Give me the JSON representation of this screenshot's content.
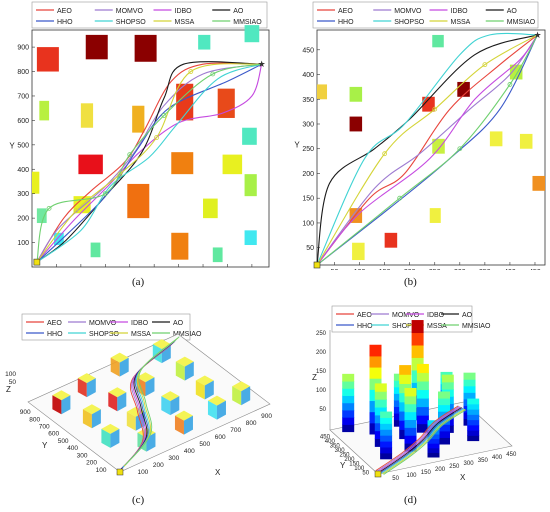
{
  "captions": {
    "a": "(a)",
    "b": "(b)",
    "c": "(c)",
    "d": "(d)"
  },
  "legend": [
    "AEO",
    "MOMVO",
    "IDBO",
    "AO",
    "HHO",
    "SHOPSO",
    "MSSA",
    "MMSIAO"
  ],
  "series_colors": {
    "AEO": "#e8453c",
    "MOMVO": "#9e7bd1",
    "IDBO": "#c54ae0",
    "AO": "#1a1a1a",
    "HHO": "#3b59c9",
    "SHOPSO": "#40d3d3",
    "MSSA": "#d4d437",
    "MMSIAO": "#6fd06f"
  },
  "chart_data": [
    {
      "panel": "a",
      "type": "line",
      "xlabel": "X",
      "ylabel": "Y",
      "xlim": [
        0,
        970
      ],
      "ylim": [
        0,
        970
      ],
      "xticks": [
        100,
        200,
        300,
        400,
        500,
        600,
        700,
        800,
        900
      ],
      "yticks": [
        100,
        200,
        300,
        400,
        500,
        600,
        700,
        800,
        900
      ],
      "start": [
        20,
        20
      ],
      "goal": [
        940,
        830
      ],
      "obstacles": [
        {
          "x": [
            20,
            110
          ],
          "y": [
            800,
            900
          ],
          "c": "#e8331e"
        },
        {
          "x": [
            220,
            310
          ],
          "y": [
            850,
            950
          ],
          "c": "#8b0000"
        },
        {
          "x": [
            420,
            510
          ],
          "y": [
            840,
            950
          ],
          "c": "#8b0000"
        },
        {
          "x": [
            870,
            930
          ],
          "y": [
            920,
            990
          ],
          "c": "#50e8c0"
        },
        {
          "x": [
            680,
            730
          ],
          "y": [
            890,
            950
          ],
          "c": "#50e8c0"
        },
        {
          "x": [
            30,
            70
          ],
          "y": [
            600,
            680
          ],
          "c": "#b8f040"
        },
        {
          "x": [
            200,
            250
          ],
          "y": [
            570,
            670
          ],
          "c": "#f0e040"
        },
        {
          "x": [
            410,
            460
          ],
          "y": [
            550,
            660
          ],
          "c": "#f0b020"
        },
        {
          "x": [
            590,
            660
          ],
          "y": [
            600,
            750
          ],
          "c": "#e83a1a"
        },
        {
          "x": [
            760,
            830
          ],
          "y": [
            610,
            730
          ],
          "c": "#e84a1a"
        },
        {
          "x": [
            860,
            920
          ],
          "y": [
            500,
            570
          ],
          "c": "#50e8c0"
        },
        {
          "x": [
            190,
            290
          ],
          "y": [
            380,
            460
          ],
          "c": "#e8101a"
        },
        {
          "x": [
            570,
            660
          ],
          "y": [
            380,
            470
          ],
          "c": "#f08010"
        },
        {
          "x": [
            780,
            860
          ],
          "y": [
            380,
            460
          ],
          "c": "#e8f020"
        },
        {
          "x": [
            0,
            30
          ],
          "y": [
            300,
            390
          ],
          "c": "#e8f020"
        },
        {
          "x": [
            390,
            480
          ],
          "y": [
            200,
            340
          ],
          "c": "#f07010"
        },
        {
          "x": [
            170,
            240
          ],
          "y": [
            220,
            290
          ],
          "c": "#e8f020"
        },
        {
          "x": [
            700,
            760
          ],
          "y": [
            200,
            280
          ],
          "c": "#e0f020"
        },
        {
          "x": [
            870,
            920
          ],
          "y": [
            290,
            380
          ],
          "c": "#a8f048"
        },
        {
          "x": [
            20,
            60
          ],
          "y": [
            180,
            240
          ],
          "c": "#70e8a0"
        },
        {
          "x": [
            90,
            130
          ],
          "y": [
            90,
            140
          ],
          "c": "#40e8f0"
        },
        {
          "x": [
            240,
            280
          ],
          "y": [
            40,
            100
          ],
          "c": "#60e8a0"
        },
        {
          "x": [
            570,
            640
          ],
          "y": [
            30,
            140
          ],
          "c": "#f08010"
        },
        {
          "x": [
            740,
            780
          ],
          "y": [
            20,
            80
          ],
          "c": "#60e8a0"
        },
        {
          "x": [
            870,
            920
          ],
          "y": [
            90,
            150
          ],
          "c": "#40e8f0"
        }
      ],
      "series": [
        {
          "name": "AEO",
          "points": [
            [
              20,
              20
            ],
            [
              130,
              200
            ],
            [
              240,
              310
            ],
            [
              380,
              430
            ],
            [
              460,
              560
            ],
            [
              570,
              760
            ],
            [
              700,
              830
            ],
            [
              940,
              830
            ]
          ]
        },
        {
          "name": "MOMVO",
          "points": [
            [
              20,
              20
            ],
            [
              110,
              160
            ],
            [
              300,
              330
            ],
            [
              420,
              470
            ],
            [
              540,
              660
            ],
            [
              700,
              790
            ],
            [
              940,
              830
            ]
          ]
        },
        {
          "name": "IDBO",
          "points": [
            [
              20,
              20
            ],
            [
              170,
              190
            ],
            [
              320,
              340
            ],
            [
              440,
              470
            ],
            [
              600,
              590
            ],
            [
              780,
              630
            ],
            [
              900,
              700
            ],
            [
              940,
              830
            ]
          ]
        },
        {
          "name": "AO",
          "points": [
            [
              20,
              20
            ],
            [
              140,
              110
            ],
            [
              300,
              290
            ],
            [
              450,
              470
            ],
            [
              540,
              690
            ],
            [
              620,
              830
            ],
            [
              940,
              830
            ]
          ]
        },
        {
          "name": "HHO",
          "points": [
            [
              20,
              20
            ],
            [
              150,
              140
            ],
            [
              310,
              300
            ],
            [
              430,
              480
            ],
            [
              560,
              650
            ],
            [
              800,
              760
            ],
            [
              940,
              830
            ]
          ]
        },
        {
          "name": "SHOPSO",
          "points": [
            [
              20,
              20
            ],
            [
              200,
              150
            ],
            [
              320,
              330
            ],
            [
              480,
              450
            ],
            [
              590,
              580
            ],
            [
              760,
              770
            ],
            [
              940,
              830
            ]
          ]
        },
        {
          "name": "MSSA",
          "points": [
            [
              20,
              20
            ],
            [
              180,
              230
            ],
            [
              360,
              380
            ],
            [
              510,
              530
            ],
            [
              650,
              800
            ],
            [
              940,
              830
            ]
          ]
        },
        {
          "name": "MMSIAO",
          "points": [
            [
              20,
              20
            ],
            [
              70,
              240
            ],
            [
              300,
              300
            ],
            [
              400,
              460
            ],
            [
              540,
              620
            ],
            [
              740,
              790
            ],
            [
              940,
              830
            ]
          ]
        }
      ]
    },
    {
      "panel": "b",
      "type": "line",
      "xlabel": "X",
      "ylabel": "Y",
      "xlim": [
        15,
        470
      ],
      "ylim": [
        15,
        490
      ],
      "xticks": [
        50,
        100,
        150,
        200,
        250,
        300,
        350,
        400,
        450
      ],
      "yticks": [
        50,
        100,
        150,
        200,
        250,
        300,
        350,
        400,
        450
      ],
      "start": [
        15,
        15
      ],
      "goal": [
        455,
        480
      ],
      "obstacles": [
        {
          "x": [
            15,
            35
          ],
          "y": [
            350,
            380
          ],
          "c": "#f0d040"
        },
        {
          "x": [
            80,
            105
          ],
          "y": [
            345,
            375
          ],
          "c": "#a8f048"
        },
        {
          "x": [
            80,
            105
          ],
          "y": [
            285,
            315
          ],
          "c": "#8b0000"
        },
        {
          "x": [
            245,
            268
          ],
          "y": [
            455,
            480
          ],
          "c": "#60e8a0"
        },
        {
          "x": [
            225,
            250
          ],
          "y": [
            325,
            355
          ],
          "c": "#e8331e"
        },
        {
          "x": [
            295,
            320
          ],
          "y": [
            355,
            385
          ],
          "c": "#8b0000"
        },
        {
          "x": [
            400,
            425
          ],
          "y": [
            390,
            420
          ],
          "c": "#b8f040"
        },
        {
          "x": [
            245,
            270
          ],
          "y": [
            240,
            270
          ],
          "c": "#c8f040"
        },
        {
          "x": [
            360,
            385
          ],
          "y": [
            255,
            285
          ],
          "c": "#f0f040"
        },
        {
          "x": [
            420,
            445
          ],
          "y": [
            250,
            280
          ],
          "c": "#f0f040"
        },
        {
          "x": [
            445,
            470
          ],
          "y": [
            165,
            195
          ],
          "c": "#f09020"
        },
        {
          "x": [
            80,
            105
          ],
          "y": [
            100,
            130
          ],
          "c": "#f09020"
        },
        {
          "x": [
            240,
            262
          ],
          "y": [
            100,
            130
          ],
          "c": "#f0f040"
        },
        {
          "x": [
            150,
            175
          ],
          "y": [
            50,
            80
          ],
          "c": "#e8331e"
        },
        {
          "x": [
            85,
            110
          ],
          "y": [
            25,
            60
          ],
          "c": "#f0f040"
        }
      ],
      "series": [
        {
          "name": "AEO",
          "points": [
            [
              15,
              15
            ],
            [
              120,
              150
            ],
            [
              190,
              200
            ],
            [
              280,
              330
            ],
            [
              380,
              420
            ],
            [
              455,
              480
            ]
          ]
        },
        {
          "name": "MOMVO",
          "points": [
            [
              15,
              15
            ],
            [
              130,
              170
            ],
            [
              220,
              240
            ],
            [
              320,
              330
            ],
            [
              400,
              400
            ],
            [
              455,
              480
            ]
          ]
        },
        {
          "name": "IDBO",
          "points": [
            [
              15,
              15
            ],
            [
              100,
              120
            ],
            [
              240,
              230
            ],
            [
              330,
              350
            ],
            [
              420,
              430
            ],
            [
              455,
              480
            ]
          ]
        },
        {
          "name": "AO",
          "points": [
            [
              15,
              15
            ],
            [
              40,
              180
            ],
            [
              130,
              250
            ],
            [
              200,
              310
            ],
            [
              330,
              440
            ],
            [
              455,
              480
            ]
          ]
        },
        {
          "name": "HHO",
          "points": [
            [
              15,
              15
            ],
            [
              160,
              130
            ],
            [
              280,
              230
            ],
            [
              380,
              330
            ],
            [
              455,
              480
            ]
          ]
        },
        {
          "name": "SHOPSO",
          "points": [
            [
              15,
              15
            ],
            [
              110,
              230
            ],
            [
              190,
              300
            ],
            [
              300,
              440
            ],
            [
              360,
              480
            ],
            [
              455,
              480
            ]
          ]
        },
        {
          "name": "MSSA",
          "points": [
            [
              15,
              15
            ],
            [
              150,
              240
            ],
            [
              250,
              330
            ],
            [
              350,
              420
            ],
            [
              455,
              480
            ]
          ]
        },
        {
          "name": "MMSIAO",
          "points": [
            [
              15,
              15
            ],
            [
              180,
              150
            ],
            [
              300,
              250
            ],
            [
              400,
              380
            ],
            [
              455,
              480
            ]
          ]
        }
      ]
    },
    {
      "panel": "c",
      "type": "line",
      "xlabel": "X",
      "ylabel": "Y",
      "zlabel": "Z",
      "xticks": [
        100,
        200,
        300,
        400,
        500,
        600,
        700,
        800,
        900
      ],
      "yticks": [
        100,
        200,
        300,
        400,
        500,
        600,
        700,
        800,
        900
      ],
      "zticks": [
        50,
        100
      ]
    },
    {
      "panel": "d",
      "type": "line",
      "xlabel": "X",
      "ylabel": "Y",
      "zlabel": "Z",
      "xticks": [
        50,
        100,
        150,
        200,
        250,
        300,
        350,
        400,
        450
      ],
      "yticks": [
        50,
        100,
        150,
        200,
        250,
        300,
        350,
        400,
        450
      ],
      "zticks": [
        50,
        100,
        150,
        200,
        250
      ]
    }
  ]
}
